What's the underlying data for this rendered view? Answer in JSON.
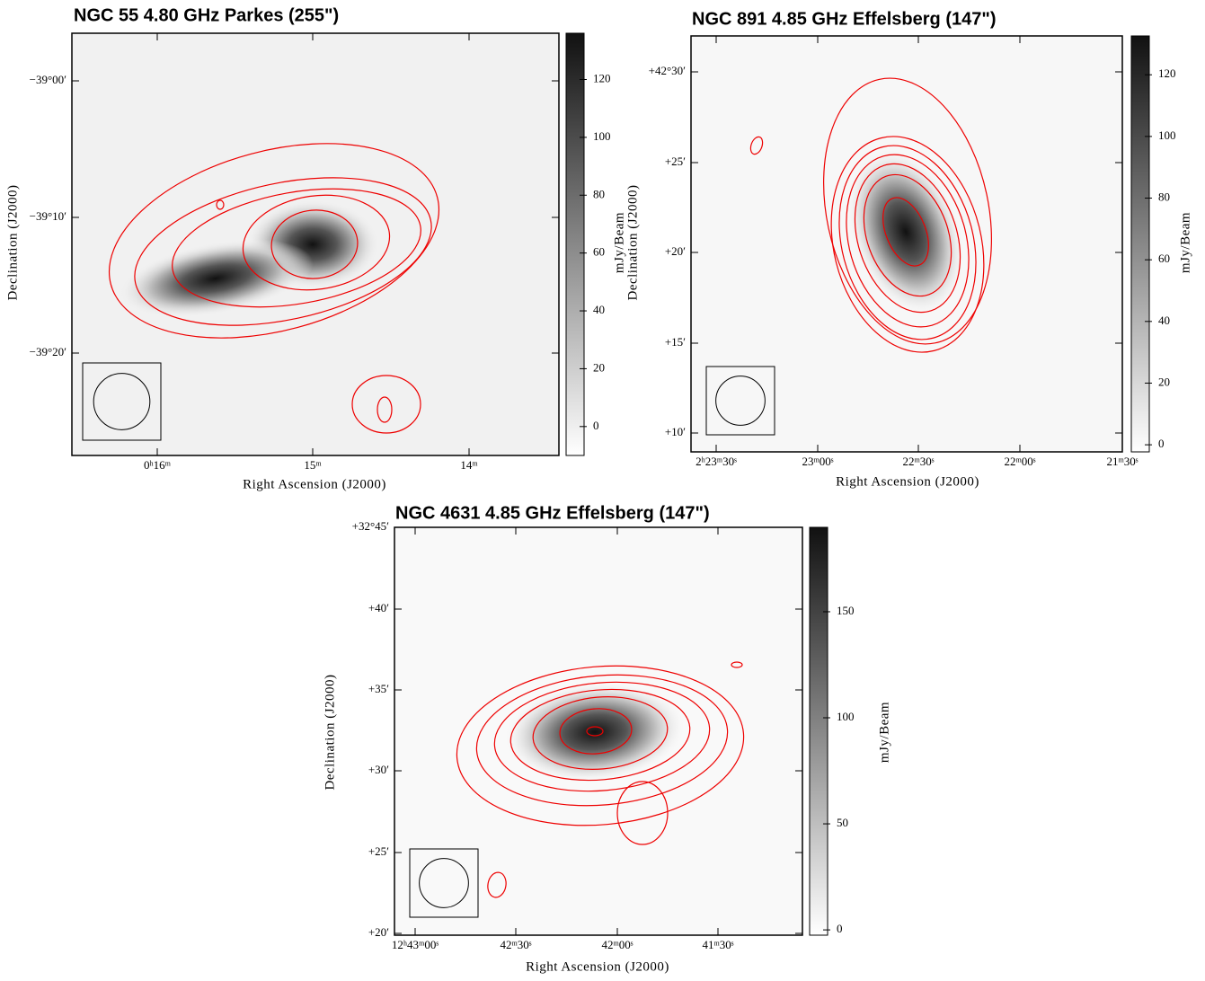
{
  "panels": [
    {
      "title": "NGC 55 4.80 GHz Parkes (255\")",
      "x_label": "Right Ascension (J2000)",
      "y_label": "Declination (J2000)",
      "colorbar_label": "mJy/Beam",
      "clim": [
        -10,
        136
      ],
      "cticks": [
        0,
        20,
        40,
        60,
        80,
        100,
        120
      ],
      "x_ticks": [
        "0ʰ16ᵐ",
        "15ᵐ",
        "14ᵐ"
      ],
      "y_ticks": [
        "−39°00′",
        "−39°10′",
        "−39°20′"
      ]
    },
    {
      "title": "NGC 891 4.85 GHz Effelsberg (147\")",
      "x_label": "Right Ascension (J2000)",
      "y_label": "Declination (J2000)",
      "colorbar_label": "mJy/Beam",
      "clim": [
        -2.3,
        132.6
      ],
      "cticks": [
        0,
        20,
        40,
        60,
        80,
        100,
        120
      ],
      "x_ticks": [
        "2ʰ23ᵐ30ˢ",
        "23ᵐ00ˢ",
        "22ᵐ30ˢ",
        "22ᵐ00ˢ",
        "21ᵐ30ˢ"
      ],
      "y_ticks": [
        "+42°30′",
        "+25′",
        "+20′",
        "+15′",
        "+10′"
      ]
    },
    {
      "title": "NGC 4631 4.85 GHz Effelsberg (147\")",
      "x_label": "Right Ascension (J2000)",
      "y_label": "Declination (J2000)",
      "colorbar_label": "mJy/Beam",
      "clim": [
        -2.5,
        189.8
      ],
      "cticks": [
        0,
        50,
        100,
        150
      ],
      "x_ticks": [
        "12ʰ43ᵐ00ˢ",
        "42ᵐ30ˢ",
        "42ᵐ00ˢ",
        "41ᵐ30ˢ"
      ],
      "y_ticks": [
        "+32°45′",
        "+40′",
        "+35′",
        "+30′",
        "+25′",
        "+20′"
      ]
    }
  ]
}
